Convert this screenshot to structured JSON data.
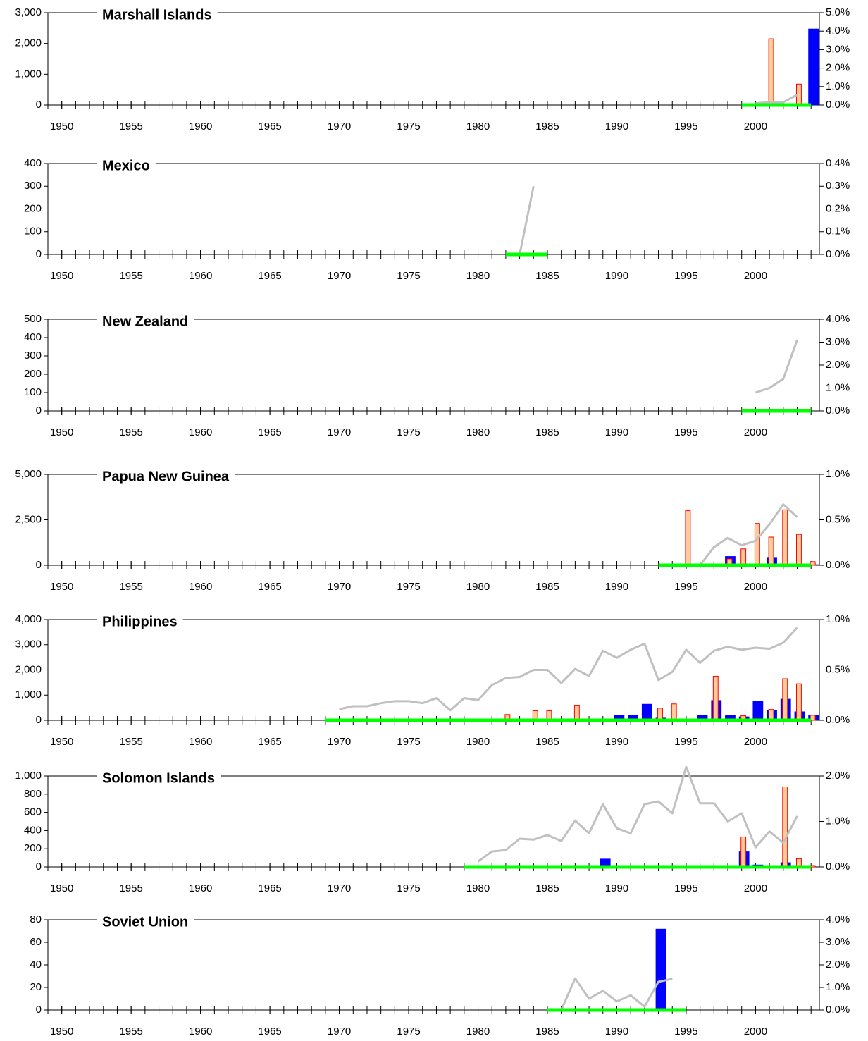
{
  "chart_data": [
    {
      "type": "bar",
      "title": "Marshall Islands",
      "xlim": [
        1949,
        2004.6
      ],
      "xticks": [
        1950,
        1955,
        1960,
        1965,
        1970,
        1975,
        1980,
        1985,
        1990,
        1995,
        2000
      ],
      "ylim": [
        0,
        3000
      ],
      "yticks": [
        0,
        {
          "value": 1000,
          "label": "1,000"
        },
        {
          "value": 2000,
          "label": "2,000"
        },
        {
          "value": 3000,
          "label": "3,000"
        }
      ],
      "y2lim": [
        0,
        5
      ],
      "y2ticks": [
        {
          "value": 0,
          "label": "0.0%"
        },
        {
          "value": 1,
          "label": "1.0%"
        },
        {
          "value": 2,
          "label": "2.0%"
        },
        {
          "value": 3,
          "label": "3.0%"
        },
        {
          "value": 4,
          "label": "4.0%"
        },
        {
          "value": 5,
          "label": "5.0%"
        }
      ],
      "series": [
        {
          "type": "bar",
          "color": "#0000ff",
          "x": [
            2004
          ],
          "values": [
            2480
          ]
        },
        {
          "type": "bar",
          "color": "#ffcc99",
          "edgecolor": "#ff0000",
          "x": [
            2001,
            2003
          ],
          "values": [
            2150,
            680
          ]
        },
        {
          "type": "line",
          "color": "#c0c0c0",
          "axis": "y2",
          "x": [
            2000,
            2001,
            2002,
            2003
          ],
          "values": [
            0.1,
            0.15,
            0.15,
            0.55
          ]
        },
        {
          "type": "line",
          "color": "#00ff00",
          "x": [
            1999,
            2004
          ],
          "values": [
            0,
            0
          ]
        }
      ]
    },
    {
      "type": "bar",
      "title": "Mexico",
      "xlim": [
        1949,
        2004.6
      ],
      "xticks": [
        1950,
        1955,
        1960,
        1965,
        1970,
        1975,
        1980,
        1985,
        1990,
        1995,
        2000
      ],
      "ylim": [
        0,
        400
      ],
      "yticks": [
        0,
        100,
        200,
        300,
        400
      ],
      "y2lim": [
        0,
        0.4
      ],
      "y2ticks": [
        {
          "value": 0,
          "label": "0.0%"
        },
        {
          "value": 0.1,
          "label": "0.1%"
        },
        {
          "value": 0.2,
          "label": "0.2%"
        },
        {
          "value": 0.3,
          "label": "0.3%"
        },
        {
          "value": 0.4,
          "label": "0.4%"
        }
      ],
      "series": [
        {
          "type": "line",
          "color": "#c0c0c0",
          "axis": "y2",
          "x": [
            1983,
            1984
          ],
          "values": [
            0,
            0.3
          ]
        },
        {
          "type": "line",
          "color": "#00ff00",
          "x": [
            1982,
            1985
          ],
          "values": [
            0,
            0
          ]
        }
      ]
    },
    {
      "type": "bar",
      "title": "New Zealand",
      "xlim": [
        1949,
        2004.6
      ],
      "xticks": [
        1950,
        1955,
        1960,
        1965,
        1970,
        1975,
        1980,
        1985,
        1990,
        1995,
        2000
      ],
      "ylim": [
        0,
        500
      ],
      "yticks": [
        0,
        100,
        200,
        300,
        400,
        500
      ],
      "y2lim": [
        0,
        4
      ],
      "y2ticks": [
        {
          "value": 0,
          "label": "0.0%"
        },
        {
          "value": 1,
          "label": "1.0%"
        },
        {
          "value": 2,
          "label": "2.0%"
        },
        {
          "value": 3,
          "label": "3.0%"
        },
        {
          "value": 4,
          "label": "4.0%"
        }
      ],
      "series": [
        {
          "type": "line",
          "color": "#c0c0c0",
          "axis": "y2",
          "x": [
            2000,
            2001,
            2002,
            2003
          ],
          "values": [
            0.8,
            1.0,
            1.4,
            3.1
          ]
        },
        {
          "type": "line",
          "color": "#00ff00",
          "x": [
            1999,
            2004
          ],
          "values": [
            0,
            0
          ]
        }
      ]
    },
    {
      "type": "bar",
      "title": "Papua New Guinea",
      "xlim": [
        1949,
        2004.6
      ],
      "xticks": [
        1950,
        1955,
        1960,
        1965,
        1970,
        1975,
        1980,
        1985,
        1990,
        1995,
        2000
      ],
      "ylim": [
        0,
        5000
      ],
      "yticks": [
        0,
        {
          "value": 2500,
          "label": "2,500"
        },
        {
          "value": 5000,
          "label": "5,000"
        }
      ],
      "y2lim": [
        0,
        1
      ],
      "y2ticks": [
        {
          "value": 0,
          "label": "0.0%"
        },
        {
          "value": 0.5,
          "label": "0.5%"
        },
        {
          "value": 1,
          "label": "1.0%"
        }
      ],
      "series": [
        {
          "type": "bar",
          "color": "#0000ff",
          "x": [
            1998,
            2001,
            2004
          ],
          "values": [
            500,
            450,
            50
          ]
        },
        {
          "type": "bar",
          "color": "#ffcc99",
          "edgecolor": "#ff0000",
          "x": [
            1995,
            1998,
            1999,
            2000,
            2001,
            2002,
            2003,
            2004
          ],
          "values": [
            3000,
            350,
            900,
            2300,
            1550,
            3050,
            1700,
            200
          ]
        },
        {
          "type": "line",
          "color": "#c0c0c0",
          "axis": "y2",
          "x": [
            1995,
            1996,
            1997,
            1998,
            1999,
            2000,
            2001,
            2002,
            2003
          ],
          "values": [
            0,
            0,
            0.2,
            0.3,
            0.22,
            0.27,
            0.45,
            0.67,
            0.53
          ]
        },
        {
          "type": "line",
          "color": "#00ff00",
          "x": [
            1993,
            2004
          ],
          "values": [
            0,
            0
          ]
        }
      ]
    },
    {
      "type": "bar",
      "title": "Philippines",
      "xlim": [
        1949,
        2004.6
      ],
      "xticks": [
        1950,
        1955,
        1960,
        1965,
        1970,
        1975,
        1980,
        1985,
        1990,
        1995,
        2000
      ],
      "ylim": [
        0,
        4000
      ],
      "yticks": [
        0,
        {
          "value": 1000,
          "label": "1,000"
        },
        {
          "value": 2000,
          "label": "2,000"
        },
        {
          "value": 3000,
          "label": "3,000"
        },
        {
          "value": 4000,
          "label": "4,000"
        }
      ],
      "y2lim": [
        0,
        1
      ],
      "y2ticks": [
        {
          "value": 0,
          "label": "0.0%"
        },
        {
          "value": 0.5,
          "label": "0.5%"
        },
        {
          "value": 1,
          "label": "1.0%"
        }
      ],
      "series": [
        {
          "type": "bar",
          "color": "#0000ff",
          "x": [
            1990,
            1991,
            1992,
            1993,
            1996,
            1997,
            1998,
            1999,
            2000,
            2001,
            2002,
            2003,
            2004
          ],
          "values": [
            200,
            200,
            650,
            100,
            200,
            800,
            200,
            150,
            780,
            420,
            850,
            350,
            200
          ]
        },
        {
          "type": "bar",
          "color": "#ffcc99",
          "edgecolor": "#ff0000",
          "x": [
            1982,
            1984,
            1985,
            1987,
            1993,
            1994,
            1997,
            1999,
            2001,
            2002,
            2003,
            2004
          ],
          "values": [
            230,
            380,
            380,
            600,
            480,
            650,
            1750,
            180,
            430,
            1650,
            1450,
            200
          ]
        },
        {
          "type": "line",
          "color": "#c0c0c0",
          "axis": "y2",
          "x": [
            1970,
            1971,
            1972,
            1973,
            1974,
            1975,
            1976,
            1977,
            1978,
            1979,
            1980,
            1981,
            1982,
            1983,
            1984,
            1985,
            1986,
            1987,
            1988,
            1989,
            1990,
            1991,
            1992,
            1993,
            1994,
            1995,
            1996,
            1997,
            1998,
            1999,
            2000,
            2001,
            2002,
            2003
          ],
          "values": [
            0.11,
            0.14,
            0.14,
            0.17,
            0.19,
            0.19,
            0.17,
            0.22,
            0.1,
            0.22,
            0.2,
            0.35,
            0.42,
            0.43,
            0.5,
            0.5,
            0.37,
            0.51,
            0.44,
            0.69,
            0.62,
            0.7,
            0.76,
            0.4,
            0.48,
            0.7,
            0.57,
            0.69,
            0.73,
            0.7,
            0.72,
            0.71,
            0.77,
            0.92
          ]
        },
        {
          "type": "line",
          "color": "#00ff00",
          "x": [
            1969,
            2004
          ],
          "values": [
            0,
            0
          ]
        }
      ]
    },
    {
      "type": "bar",
      "title": "Solomon Islands",
      "xlim": [
        1949,
        2004.6
      ],
      "xticks": [
        1950,
        1955,
        1960,
        1965,
        1970,
        1975,
        1980,
        1985,
        1990,
        1995,
        2000
      ],
      "ylim": [
        0,
        1000
      ],
      "yticks": [
        0,
        200,
        400,
        600,
        800,
        {
          "value": 1000,
          "label": "1,000"
        }
      ],
      "y2lim": [
        0,
        2
      ],
      "y2ticks": [
        {
          "value": 0,
          "label": "0.0%"
        },
        {
          "value": 1,
          "label": "1.0%"
        },
        {
          "value": 2,
          "label": "2.0%"
        }
      ],
      "series": [
        {
          "type": "bar",
          "color": "#0000ff",
          "x": [
            1989,
            1999,
            2000,
            2002
          ],
          "values": [
            90,
            170,
            25,
            50
          ]
        },
        {
          "type": "bar",
          "color": "#ffcc99",
          "edgecolor": "#ff0000",
          "x": [
            1999,
            2002,
            2003,
            2004
          ],
          "values": [
            330,
            880,
            90,
            15
          ]
        },
        {
          "type": "line",
          "color": "#c0c0c0",
          "axis": "y2",
          "x": [
            1980,
            1981,
            1982,
            1983,
            1984,
            1985,
            1986,
            1987,
            1988,
            1989,
            1990,
            1991,
            1992,
            1993,
            1994,
            1995,
            1996,
            1997,
            1998,
            1999,
            2000,
            2001,
            2002,
            2003
          ],
          "values": [
            0.12,
            0.34,
            0.37,
            0.62,
            0.6,
            0.7,
            0.57,
            1.02,
            0.74,
            1.38,
            0.85,
            0.74,
            1.38,
            1.44,
            1.18,
            2.2,
            1.4,
            1.4,
            1.0,
            1.18,
            0.43,
            0.78,
            0.53,
            1.12
          ]
        },
        {
          "type": "line",
          "color": "#00ff00",
          "x": [
            1979,
            2004
          ],
          "values": [
            0,
            0
          ]
        }
      ]
    },
    {
      "type": "bar",
      "title": "Soviet Union",
      "xlim": [
        1949,
        2004.6
      ],
      "xticks": [
        1950,
        1955,
        1960,
        1965,
        1970,
        1975,
        1980,
        1985,
        1990,
        1995,
        2000
      ],
      "ylim": [
        0,
        80
      ],
      "yticks": [
        0,
        20,
        40,
        60,
        80
      ],
      "y2lim": [
        0,
        4
      ],
      "y2ticks": [
        {
          "value": 0,
          "label": "0.0%"
        },
        {
          "value": 1,
          "label": "1.0%"
        },
        {
          "value": 2,
          "label": "2.0%"
        },
        {
          "value": 3,
          "label": "3.0%"
        },
        {
          "value": 4,
          "label": "4.0%"
        }
      ],
      "series": [
        {
          "type": "bar",
          "color": "#0000ff",
          "x": [
            1993
          ],
          "values": [
            72
          ]
        },
        {
          "type": "line",
          "color": "#c0c0c0",
          "axis": "y2",
          "x": [
            1986,
            1987,
            1988,
            1989,
            1990,
            1991,
            1992,
            1993,
            1994
          ],
          "values": [
            0,
            1.4,
            0.5,
            0.85,
            0.38,
            0.65,
            0.15,
            1.25,
            1.38
          ]
        },
        {
          "type": "line",
          "color": "#00ff00",
          "x": [
            1985,
            1995
          ],
          "values": [
            0,
            0
          ]
        }
      ]
    }
  ]
}
